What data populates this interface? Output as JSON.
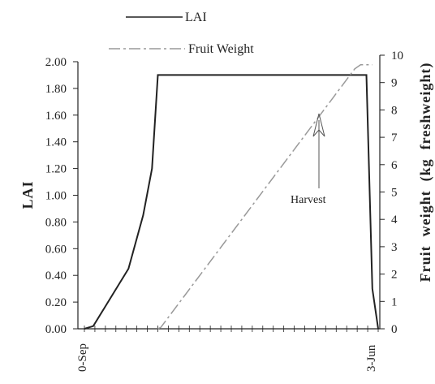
{
  "chart_data": {
    "type": "line",
    "x_categories": [
      "0-Sep",
      "3-Jun"
    ],
    "y_left": {
      "label": "LAI",
      "ylim": [
        0,
        2.0
      ],
      "ticks": [
        "0.00",
        "0.20",
        "0.40",
        "0.60",
        "0.80",
        "1.00",
        "1.20",
        "1.40",
        "1.60",
        "1.80",
        "2.00"
      ]
    },
    "y_right": {
      "label": "Fruit  weight  (kg  freshweight)",
      "ylim": [
        0,
        10
      ],
      "ticks": [
        "0",
        "1",
        "2",
        "3",
        "4",
        "5",
        "6",
        "7",
        "8",
        "9",
        "10"
      ]
    },
    "series": [
      {
        "name": "LAI",
        "axis": "left",
        "color": "#222222",
        "x": [
          0,
          0.03,
          0.15,
          0.2,
          0.23,
          0.25,
          0.26,
          0.9,
          0.96,
          0.98,
          1.0
        ],
        "y": [
          0,
          0.02,
          0.45,
          0.85,
          1.2,
          1.9,
          1.9,
          1.9,
          1.9,
          0.3,
          0.0
        ]
      },
      {
        "name": "Fruit Weight",
        "axis": "right",
        "color": "#999999",
        "x": [
          0.25,
          0.26,
          0.92,
          0.94,
          0.98
        ],
        "y": [
          0.0,
          0.05,
          9.5,
          9.65,
          9.65
        ]
      }
    ],
    "annotations": [
      {
        "text": "Harvest"
      }
    ],
    "legend": "top",
    "grid": false
  }
}
